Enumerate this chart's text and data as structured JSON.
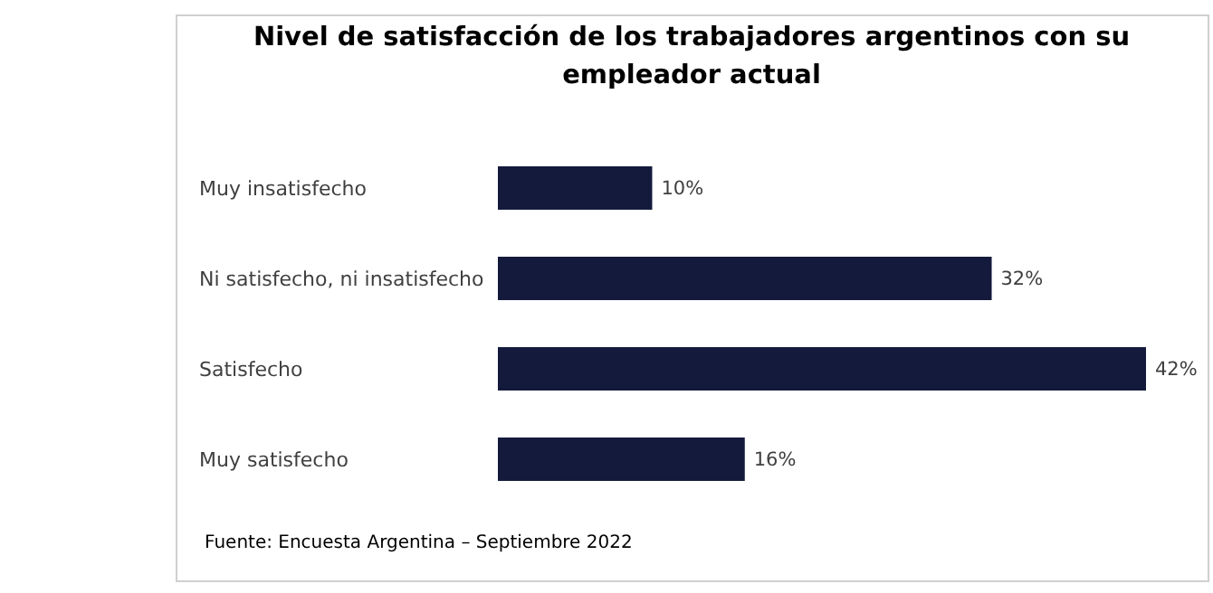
{
  "chart_data": {
    "type": "bar",
    "orientation": "horizontal",
    "title": "Nivel de satisfacción de los trabajadores argentinos con su empleador actual",
    "categories": [
      "Muy insatisfecho",
      "Ni satisfecho, ni insatisfecho",
      "Satisfecho",
      "Muy satisfecho"
    ],
    "values": [
      10,
      32,
      42,
      16
    ],
    "value_labels": [
      "10%",
      "32%",
      "42%",
      "16%"
    ],
    "color": "#141a3c",
    "annotations": [
      "Fuente: Encuesta Argentina – Septiembre 2022"
    ]
  }
}
